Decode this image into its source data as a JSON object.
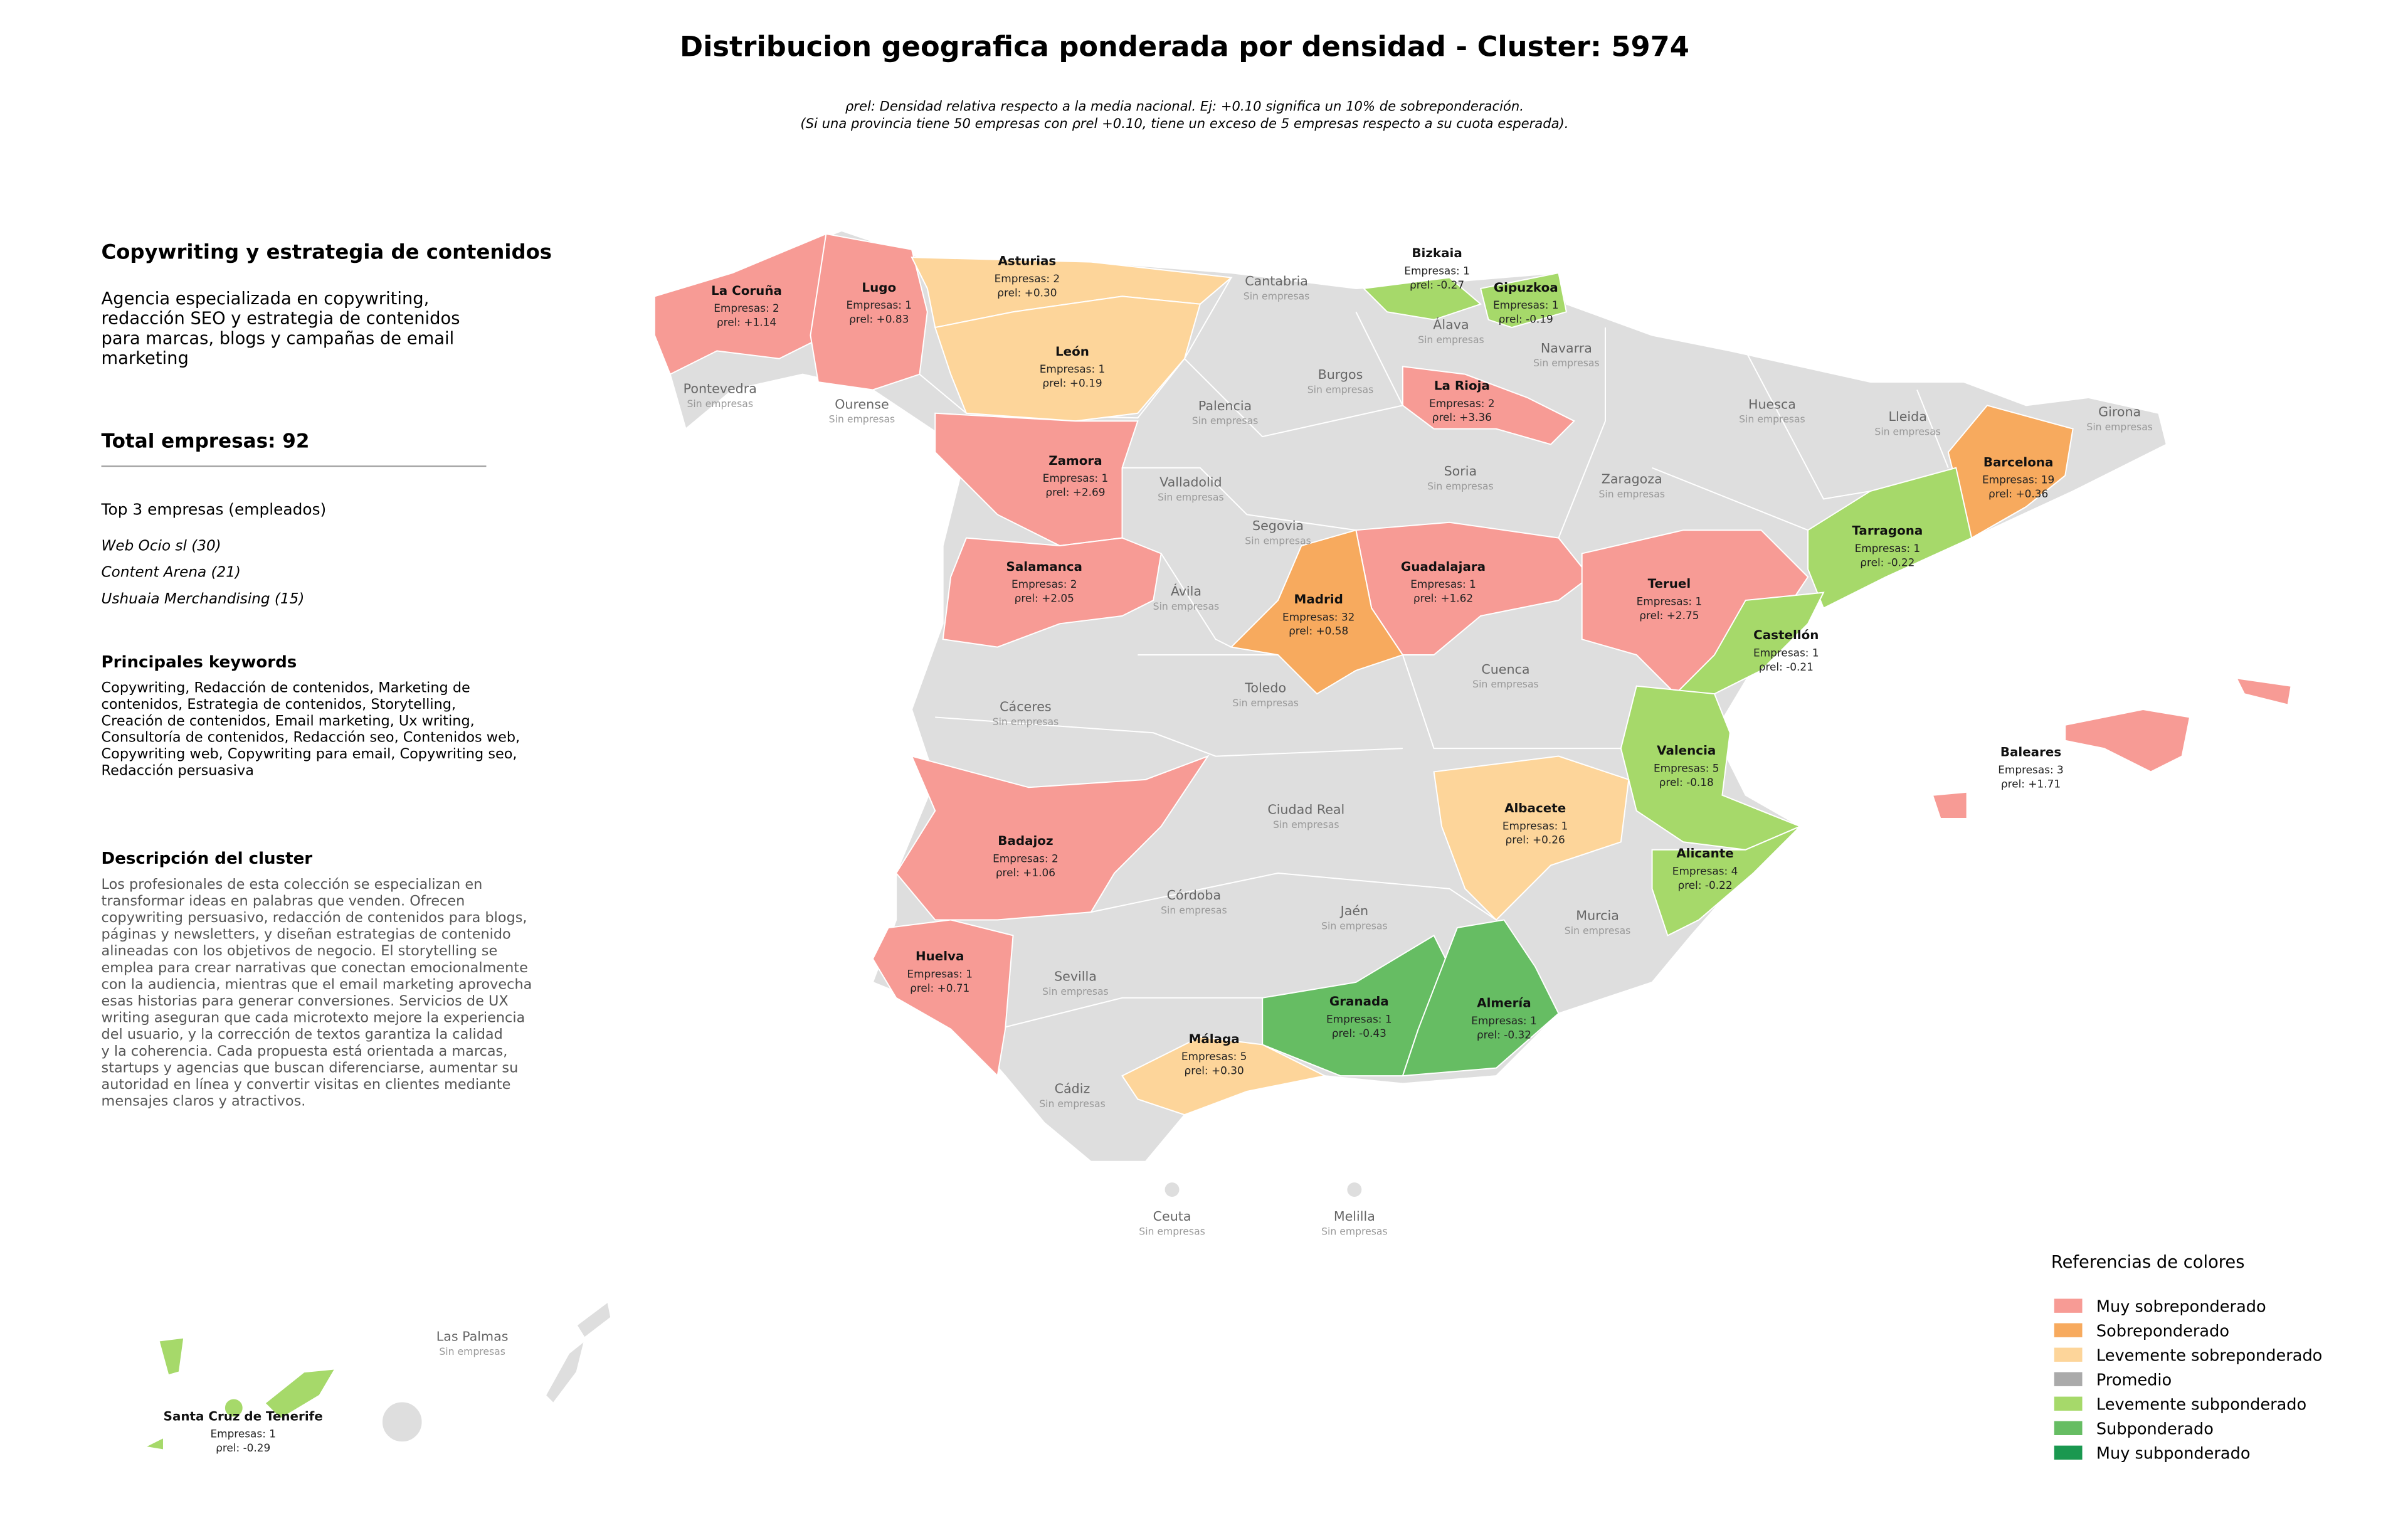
{
  "title": "Distribucion geografica ponderada por densidad - Cluster: 5974",
  "subtitle": [
    "ρrel: Densidad relativa respecto a la media nacional. Ej: +0.10 significa un 10% de sobreponderación.",
    "(Si una provincia tiene 50 empresas con ρrel +0.10, tiene un exceso de 5 empresas respecto a su cuota esperada)."
  ],
  "panel": {
    "heading": "Copywriting y estrategia de contenidos",
    "agency": [
      "Agencia especializada en copywriting,",
      "redacción SEO y estrategia de contenidos",
      "para marcas, blogs y campañas de email",
      "marketing"
    ],
    "total": "Total empresas: 92",
    "top_heading": "Top 3 empresas (empleados)",
    "top": [
      "Web Ocio sl (30)",
      "Content Arena (21)",
      "Ushuaia Merchandising (15)"
    ],
    "keywords_heading": "Principales keywords",
    "keywords": [
      "Copywriting, Redacción de contenidos, Marketing de",
      "contenidos, Estrategia de contenidos, Storytelling,",
      "Creación de contenidos, Email marketing, Ux writing,",
      "Consultoría de contenidos, Redacción seo, Contenidos web,",
      "Copywriting web, Copywriting para email, Copywriting seo,",
      "Redacción persuasiva"
    ],
    "description_heading": "Descripción del cluster",
    "description": [
      "Los profesionales de esta colección se especializan en",
      "transformar ideas en palabras que venden. Ofrecen",
      "copywriting persuasivo, redacción de contenidos para blogs,",
      "páginas y newsletters, y diseñan estrategias de contenido",
      "alineadas con los objetivos de negocio. El storytelling se",
      "emplea para crear narrativas que conectan emocionalmente",
      "con la audiencia, mientras que el email marketing aprovecha",
      "esas historias para generar conversiones. Servicios de UX",
      "writing aseguran que cada microtexto mejore la experiencia",
      "del usuario, y la corrección de textos garantiza la calidad",
      "y la coherencia. Cada propuesta está orientada a marcas,",
      "startups y agencias que buscan diferenciarse, aumentar su",
      "autoridad en línea y convertir visitas en clientes mediante",
      "mensajes claros y atractivos."
    ]
  },
  "no_data_color": "#dedede",
  "provinces": [
    {
      "name": "La Coruña",
      "companies": "Empresas: 2",
      "density": "ρrel: +1.14",
      "color": "#f79b95"
    },
    {
      "name": "Lugo",
      "companies": "Empresas: 1",
      "density": "ρrel: +0.83",
      "color": "#f79b95"
    },
    {
      "name": "Asturias",
      "companies": "Empresas: 2",
      "density": "ρrel: +0.30",
      "color": "#fdd59a"
    },
    {
      "name": "Cantabria",
      "companies": "Sin empresas"
    },
    {
      "name": "Bizkaia",
      "companies": "Empresas: 1",
      "density": "ρrel: -0.27",
      "color": "#a6d96a"
    },
    {
      "name": "Gipuzkoa",
      "companies": "Empresas: 1",
      "density": "ρrel: -0.19",
      "color": "#a6d96a"
    },
    {
      "name": "Álava",
      "companies": "Sin empresas"
    },
    {
      "name": "Navarra",
      "companies": "Sin empresas"
    },
    {
      "name": "León",
      "companies": "Empresas: 1",
      "density": "ρrel: +0.19",
      "color": "#fdd59a"
    },
    {
      "name": "Pontevedra",
      "companies": "Sin empresas"
    },
    {
      "name": "Ourense",
      "companies": "Sin empresas"
    },
    {
      "name": "Palencia",
      "companies": "Sin empresas"
    },
    {
      "name": "Burgos",
      "companies": "Sin empresas"
    },
    {
      "name": "La Rioja",
      "companies": "Empresas: 2",
      "density": "ρrel: +3.36",
      "color": "#f79b95"
    },
    {
      "name": "Huesca",
      "companies": "Sin empresas"
    },
    {
      "name": "Lleida",
      "companies": "Sin empresas"
    },
    {
      "name": "Girona",
      "companies": "Sin empresas"
    },
    {
      "name": "Barcelona",
      "companies": "Empresas: 19",
      "density": "ρrel: +0.36",
      "color": "#f7aa5e"
    },
    {
      "name": "Zamora",
      "companies": "Empresas: 1",
      "density": "ρrel: +2.69",
      "color": "#f79b95"
    },
    {
      "name": "Valladolid",
      "companies": "Sin empresas"
    },
    {
      "name": "Soria",
      "companies": "Sin empresas"
    },
    {
      "name": "Zaragoza",
      "companies": "Sin empresas"
    },
    {
      "name": "Segovia",
      "companies": "Sin empresas"
    },
    {
      "name": "Tarragona",
      "companies": "Empresas: 1",
      "density": "ρrel: -0.22",
      "color": "#a6d96a"
    },
    {
      "name": "Salamanca",
      "companies": "Empresas: 2",
      "density": "ρrel: +2.05",
      "color": "#f79b95"
    },
    {
      "name": "Guadalajara",
      "companies": "Empresas: 1",
      "density": "ρrel: +1.62",
      "color": "#f79b95"
    },
    {
      "name": "Teruel",
      "companies": "Empresas: 1",
      "density": "ρrel: +2.75",
      "color": "#f79b95"
    },
    {
      "name": "Ávila",
      "companies": "Sin empresas"
    },
    {
      "name": "Madrid",
      "companies": "Empresas: 32",
      "density": "ρrel: +0.58",
      "color": "#f7aa5e"
    },
    {
      "name": "Castellón",
      "companies": "Empresas: 1",
      "density": "ρrel: -0.21",
      "color": "#a6d96a"
    },
    {
      "name": "Cuenca",
      "companies": "Sin empresas"
    },
    {
      "name": "Toledo",
      "companies": "Sin empresas"
    },
    {
      "name": "Cáceres",
      "companies": "Sin empresas"
    },
    {
      "name": "Valencia",
      "companies": "Empresas: 5",
      "density": "ρrel: -0.18",
      "color": "#a6d96a"
    },
    {
      "name": "Baleares",
      "companies": "Empresas: 3",
      "density": "ρrel: +1.71",
      "color": "#f79b95"
    },
    {
      "name": "Ciudad Real",
      "companies": "Sin empresas"
    },
    {
      "name": "Albacete",
      "companies": "Empresas: 1",
      "density": "ρrel: +0.26",
      "color": "#fdd59a"
    },
    {
      "name": "Badajoz",
      "companies": "Empresas: 2",
      "density": "ρrel: +1.06",
      "color": "#f79b95"
    },
    {
      "name": "Alicante",
      "companies": "Empresas: 4",
      "density": "ρrel: -0.22",
      "color": "#a6d96a"
    },
    {
      "name": "Córdoba",
      "companies": "Sin empresas"
    },
    {
      "name": "Jaén",
      "companies": "Sin empresas"
    },
    {
      "name": "Murcia",
      "companies": "Sin empresas"
    },
    {
      "name": "Huelva",
      "companies": "Empresas: 1",
      "density": "ρrel: +0.71",
      "color": "#f79b95"
    },
    {
      "name": "Sevilla",
      "companies": "Sin empresas"
    },
    {
      "name": "Granada",
      "companies": "Empresas: 1",
      "density": "ρrel: -0.43",
      "color": "#66bd63"
    },
    {
      "name": "Almería",
      "companies": "Empresas: 1",
      "density": "ρrel: -0.32",
      "color": "#66bd63"
    },
    {
      "name": "Málaga",
      "companies": "Empresas: 5",
      "density": "ρrel: +0.30",
      "color": "#fdd59a"
    },
    {
      "name": "Cádiz",
      "companies": "Sin empresas"
    },
    {
      "name": "Ceuta",
      "companies": "Sin empresas"
    },
    {
      "name": "Melilla",
      "companies": "Sin empresas"
    },
    {
      "name": "Las Palmas",
      "companies": "Sin empresas"
    },
    {
      "name": "Santa Cruz de Tenerife",
      "companies": "Empresas: 1",
      "density": "ρrel: -0.29",
      "color": "#a6d96a"
    }
  ],
  "legend": {
    "title": "Referencias de colores",
    "items": [
      {
        "label": "Muy sobreponderado",
        "color": "#f79b95"
      },
      {
        "label": "Sobreponderado",
        "color": "#f7aa5e"
      },
      {
        "label": "Levemente sobreponderado",
        "color": "#fdd59a"
      },
      {
        "label": "Promedio",
        "color": "#aaaaaa"
      },
      {
        "label": "Levemente subponderado",
        "color": "#a6d96a"
      },
      {
        "label": "Subponderado",
        "color": "#66bd63"
      },
      {
        "label": "Muy subponderado",
        "color": "#1a9850"
      }
    ]
  }
}
